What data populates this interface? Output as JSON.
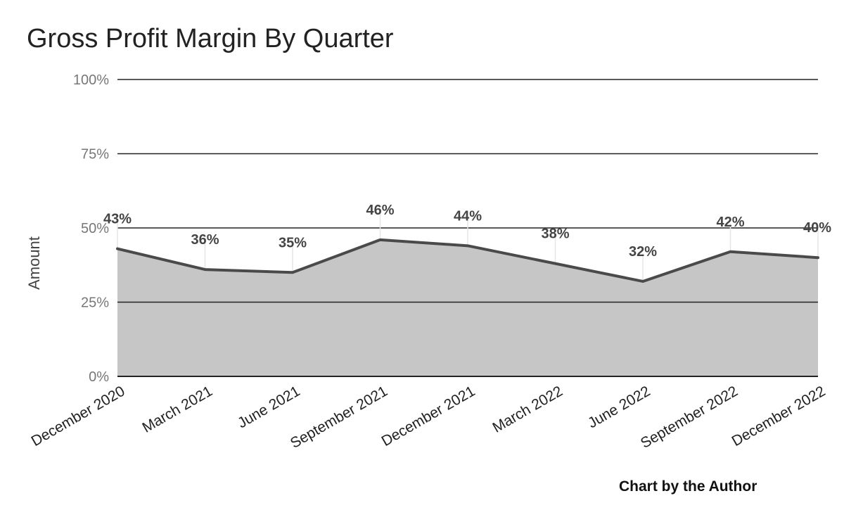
{
  "title": "Gross Profit Margin By Quarter",
  "credit": "Chart by the Author",
  "colors": {
    "fill": "#c6c6c6",
    "line": "#4a4a4a",
    "grid": "#222222",
    "tick_text": "#777777",
    "label_text": "#444444"
  },
  "chart_data": {
    "type": "area",
    "title": "Gross Profit Margin By Quarter",
    "xlabel": "",
    "ylabel": "Amount",
    "categories": [
      "December 2020",
      "March 2021",
      "June 2021",
      "September 2021",
      "December 2021",
      "March 2022",
      "June 2022",
      "September 2022",
      "December 2022"
    ],
    "values": [
      43,
      36,
      35,
      46,
      44,
      38,
      32,
      42,
      40
    ],
    "data_labels": [
      "43%",
      "36%",
      "35%",
      "46%",
      "44%",
      "38%",
      "32%",
      "42%",
      "40%"
    ],
    "ylim": [
      0,
      100
    ],
    "yticks": [
      0,
      25,
      50,
      75,
      100
    ],
    "ytick_labels": [
      "0%",
      "25%",
      "50%",
      "75%",
      "100%"
    ],
    "grid": true,
    "legend": "none"
  }
}
